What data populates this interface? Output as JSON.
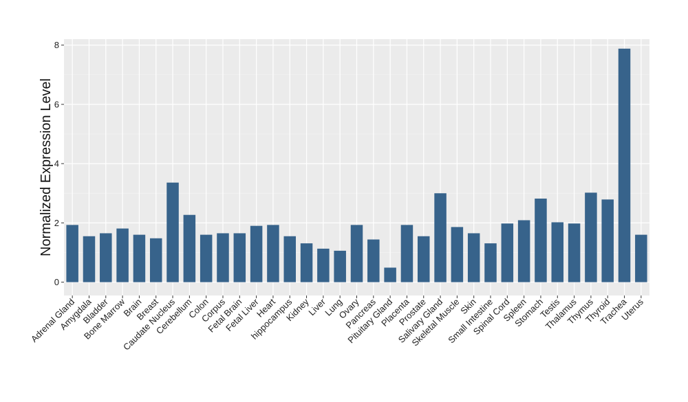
{
  "chart_data": {
    "type": "bar",
    "title": "",
    "xlabel": "",
    "ylabel": "Normalized Expression Level",
    "ylim": [
      -0.45,
      8.2
    ],
    "yticks": [
      0,
      2,
      4,
      6,
      8
    ],
    "grid": true,
    "bar_color": "#37638b",
    "panel_color": "#ebebeb",
    "categories": [
      "Adrenal Gland",
      "Amygdala",
      "Bladder",
      "Bone Marrow",
      "Brain",
      "Breast",
      "Caudate Nucleus",
      "Cerebellum",
      "Colon",
      "Corpus",
      "Fetal Brain",
      "Fetal Liver",
      "Heart",
      "hippocampus",
      "Kidney",
      "Liver",
      "Lung",
      "Ovary",
      "Pancreas",
      "Pituitary Gland",
      "Placenta",
      "Prostate",
      "Salivary Gland",
      "Skeletal Muscle",
      "Skin",
      "Small Intestine",
      "Spinal Cord",
      "Spleen",
      "Stomach",
      "Testis",
      "Thalamus",
      "Thymus",
      "Thyroid",
      "Trachea",
      "Uterus"
    ],
    "values": [
      1.93,
      1.55,
      1.65,
      1.81,
      1.6,
      1.48,
      3.36,
      2.27,
      1.6,
      1.65,
      1.65,
      1.9,
      1.93,
      1.55,
      1.31,
      1.13,
      1.06,
      1.93,
      1.44,
      0.49,
      1.93,
      1.55,
      3.0,
      1.86,
      1.65,
      1.31,
      1.98,
      2.09,
      2.82,
      2.02,
      1.98,
      3.02,
      2.79,
      7.88,
      1.6
    ]
  }
}
